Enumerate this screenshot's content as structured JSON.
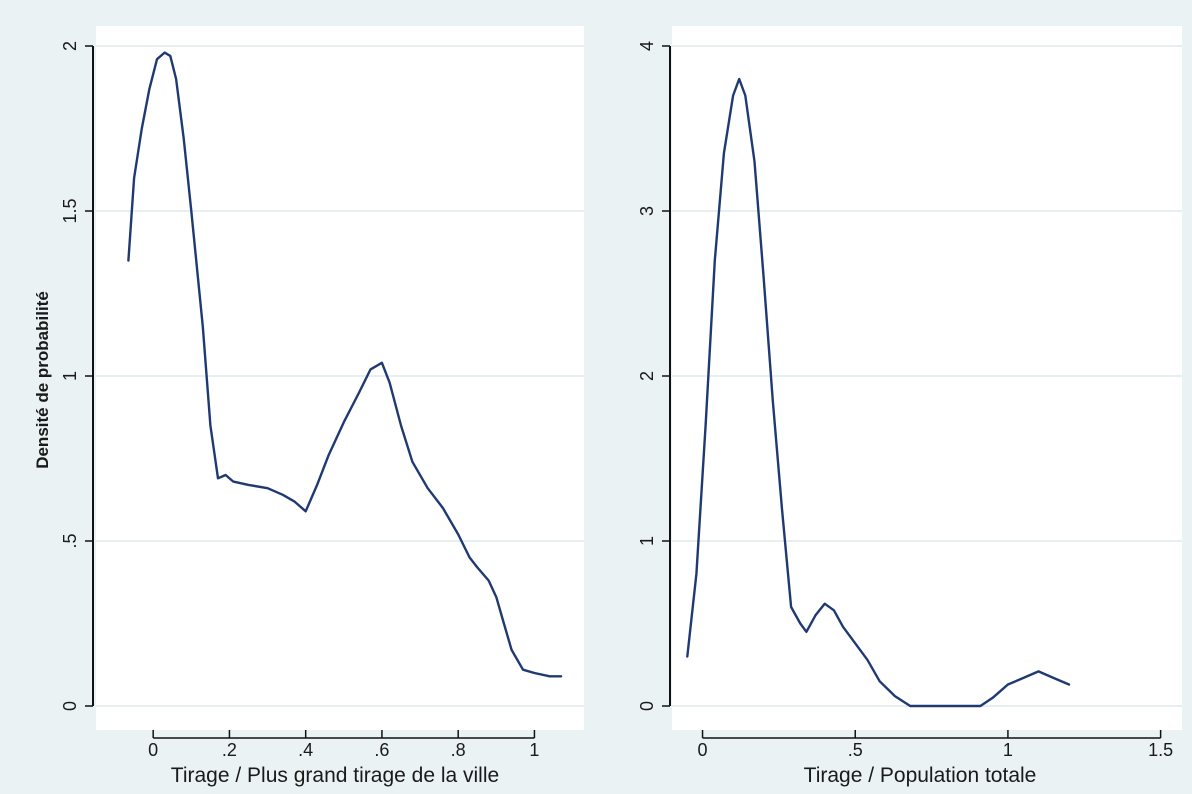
{
  "chart_data": [
    {
      "type": "line",
      "xlabel": "Tirage / Plus grand tirage de la ville",
      "ylabel": "Densité de probabilité",
      "xlim": [
        -0.15,
        1.13
      ],
      "ylim": [
        0,
        2
      ],
      "xticks": [
        0,
        0.2,
        0.4,
        0.6,
        0.8,
        1
      ],
      "xtick_labels": [
        "0",
        ".2",
        ".4",
        ".6",
        ".8",
        "1"
      ],
      "yticks": [
        0,
        0.5,
        1,
        1.5,
        2
      ],
      "ytick_labels": [
        "0",
        ".5",
        "1",
        "1.5",
        "2"
      ],
      "grid": true,
      "series": [
        {
          "color": "#1f3a73",
          "x": [
            -0.065,
            -0.05,
            -0.03,
            -0.01,
            0.01,
            0.03,
            0.045,
            0.06,
            0.08,
            0.1,
            0.13,
            0.15,
            0.17,
            0.19,
            0.21,
            0.25,
            0.3,
            0.34,
            0.37,
            0.4,
            0.43,
            0.46,
            0.5,
            0.54,
            0.57,
            0.6,
            0.62,
            0.65,
            0.68,
            0.72,
            0.76,
            0.8,
            0.83,
            0.85,
            0.88,
            0.9,
            0.92,
            0.94,
            0.97,
            1.0,
            1.04,
            1.07
          ],
          "y": [
            1.35,
            1.6,
            1.75,
            1.87,
            1.96,
            1.98,
            1.97,
            1.9,
            1.72,
            1.5,
            1.15,
            0.85,
            0.69,
            0.7,
            0.68,
            0.67,
            0.66,
            0.64,
            0.62,
            0.59,
            0.67,
            0.76,
            0.86,
            0.95,
            1.02,
            1.04,
            0.98,
            0.85,
            0.74,
            0.66,
            0.6,
            0.52,
            0.45,
            0.42,
            0.38,
            0.33,
            0.25,
            0.17,
            0.11,
            0.1,
            0.09,
            0.09
          ]
        }
      ]
    },
    {
      "type": "line",
      "xlabel": "Tirage / Population totale",
      "ylabel": "",
      "xlim": [
        -0.1,
        1.57
      ],
      "ylim": [
        0,
        4
      ],
      "xticks": [
        0,
        0.5,
        1,
        1.5
      ],
      "xtick_labels": [
        "0",
        ".5",
        "1",
        "1.5"
      ],
      "yticks": [
        0,
        1,
        2,
        3,
        4
      ],
      "ytick_labels": [
        "0",
        "1",
        "2",
        "3",
        "4"
      ],
      "grid": true,
      "series": [
        {
          "color": "#1f3a73",
          "x": [
            -0.05,
            -0.02,
            0.01,
            0.04,
            0.07,
            0.1,
            0.12,
            0.14,
            0.17,
            0.2,
            0.23,
            0.26,
            0.29,
            0.32,
            0.34,
            0.37,
            0.4,
            0.43,
            0.46,
            0.5,
            0.54,
            0.58,
            0.63,
            0.68,
            0.75,
            0.85,
            0.91,
            0.95,
            1.0,
            1.05,
            1.1,
            1.15,
            1.2
          ],
          "y": [
            0.3,
            0.8,
            1.7,
            2.7,
            3.35,
            3.7,
            3.8,
            3.7,
            3.3,
            2.6,
            1.85,
            1.2,
            0.6,
            0.5,
            0.45,
            0.55,
            0.62,
            0.58,
            0.48,
            0.38,
            0.28,
            0.15,
            0.06,
            0.0,
            0.0,
            0.0,
            0.0,
            0.05,
            0.13,
            0.17,
            0.21,
            0.17,
            0.13
          ]
        }
      ]
    }
  ]
}
